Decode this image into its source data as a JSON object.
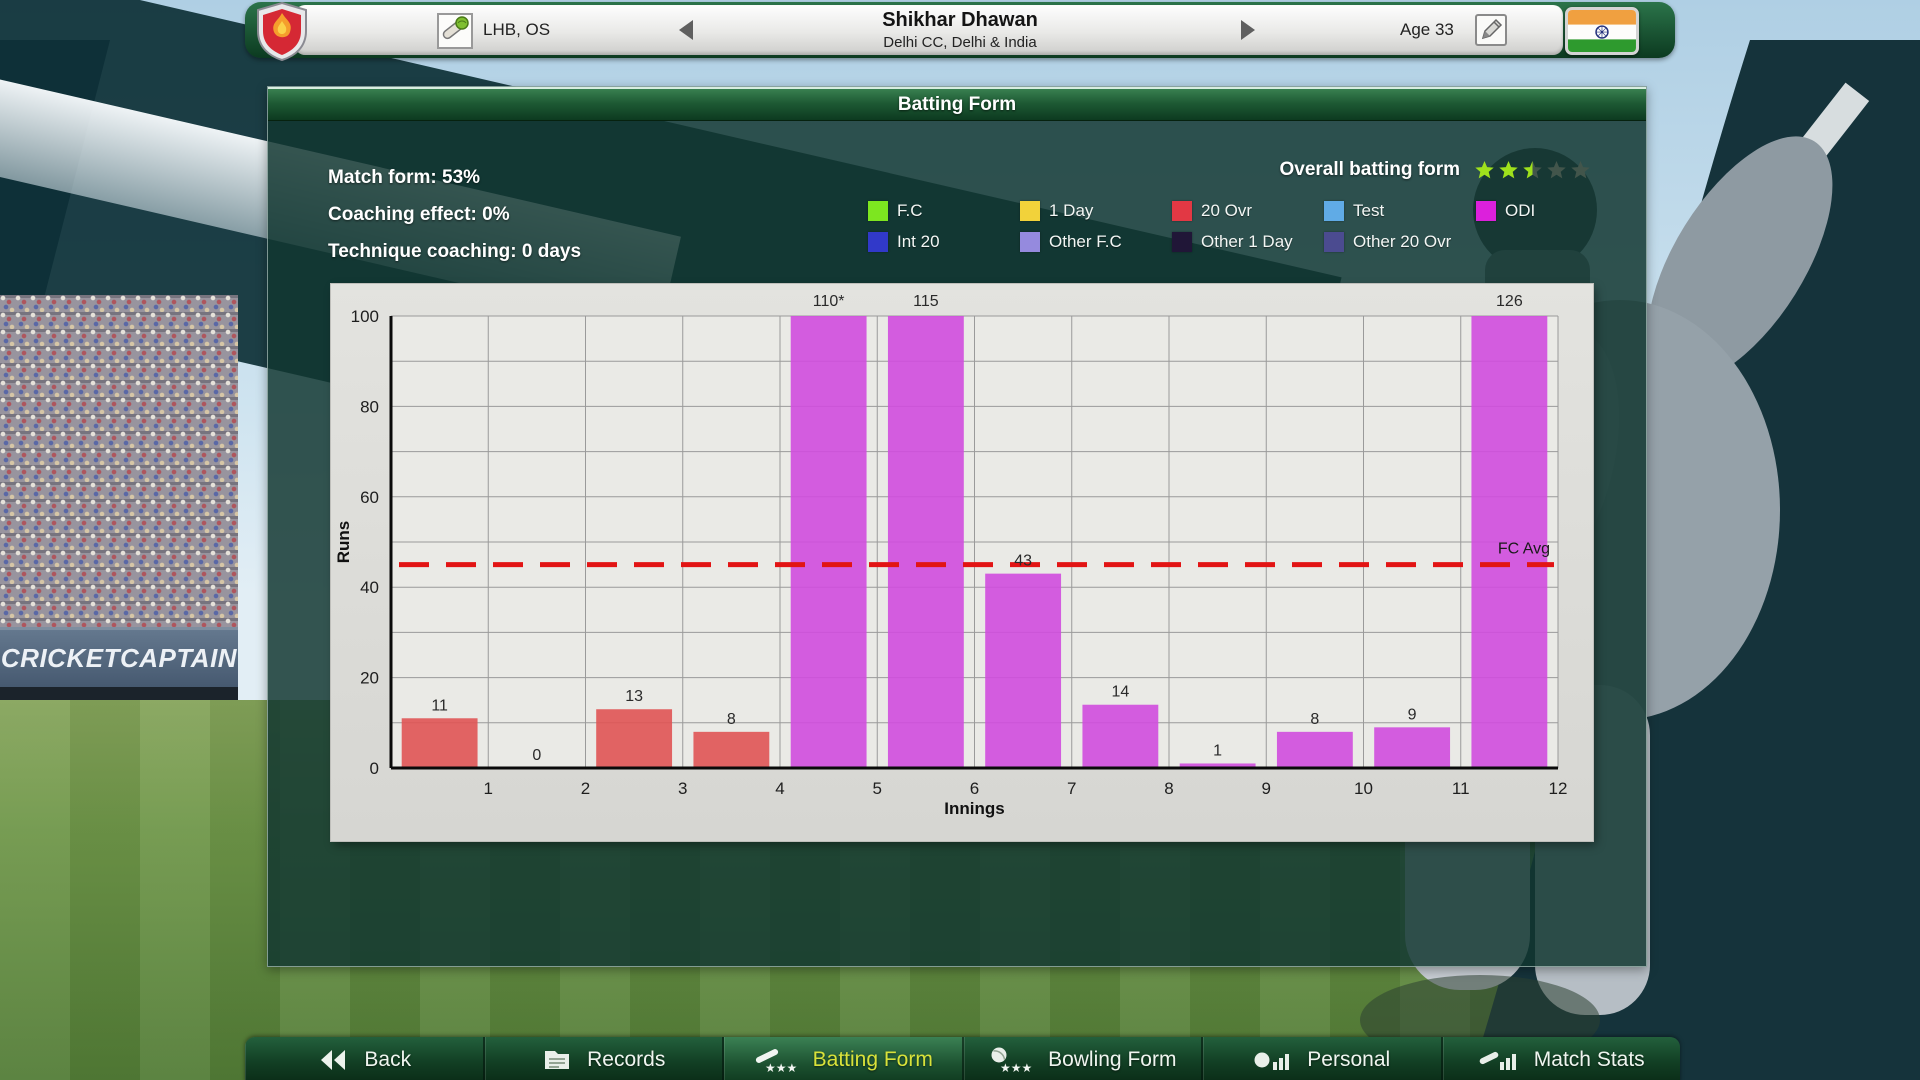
{
  "header": {
    "batting_hand": "LHB, OS",
    "player_name": "Shikhar Dhawan",
    "player_team": "Delhi CC, Delhi & India",
    "age": "Age 33"
  },
  "panel": {
    "title": "Batting Form",
    "match_form": "Match form: 53%",
    "coaching_effect": "Coaching effect: 0%",
    "technique_coaching": "Technique coaching: 0 days",
    "overall_label": "Overall batting form",
    "overall_rating": 2.5,
    "rating_max": 5,
    "star_color": "#9FE11C",
    "star_empty_color": "#42554B",
    "legend": [
      {
        "label": "F.C",
        "color": "#7DE620"
      },
      {
        "label": "1 Day",
        "color": "#F2D23A"
      },
      {
        "label": "20 Ovr",
        "color": "#E23844"
      },
      {
        "label": "Test",
        "color": "#60ABE6"
      },
      {
        "label": "ODI",
        "color": "#DC20DC"
      },
      {
        "label": "Int 20",
        "color": "#3139C9"
      },
      {
        "label": "Other F.C",
        "color": "#958ADE"
      },
      {
        "label": "Other 1 Day",
        "color": "#201637"
      },
      {
        "label": "Other 20 Ovr",
        "color": "#4B4B90"
      }
    ]
  },
  "chart_data": {
    "type": "bar",
    "title": "Batting Form",
    "xlabel": "Innings",
    "ylabel": "Runs",
    "ylim": [
      0,
      100
    ],
    "y_ticks": [
      0,
      20,
      40,
      60,
      80,
      100
    ],
    "grid_step": 10,
    "categories": [
      1,
      2,
      3,
      4,
      5,
      6,
      7,
      8,
      9,
      10,
      11,
      12
    ],
    "values": [
      11,
      0,
      13,
      8,
      110,
      115,
      43,
      14,
      1,
      8,
      9,
      126
    ],
    "labels": [
      "11",
      "0",
      "13",
      "8",
      "110*",
      "115",
      "43",
      "14",
      "1",
      "8",
      "9",
      "126"
    ],
    "types": [
      "20 Ovr",
      "20 Ovr",
      "20 Ovr",
      "20 Ovr",
      "ODI",
      "ODI",
      "ODI",
      "ODI",
      "ODI",
      "ODI",
      "ODI",
      "ODI"
    ],
    "type_colors": {
      "20 Ovr": "#E05454",
      "ODI": "#D04CDE"
    },
    "avg_line": {
      "value": 45,
      "label": "FC Avg",
      "color": "#E21414"
    },
    "grid": true,
    "legend_position": "top-right"
  },
  "background": {
    "banner_text": "CRICKETCAPTAIN"
  },
  "nav": {
    "active_text_color": "#D8E23A",
    "items": [
      {
        "label": "Back",
        "active": false
      },
      {
        "label": "Records",
        "active": false
      },
      {
        "label": "Batting Form",
        "active": true
      },
      {
        "label": "Bowling Form",
        "active": false
      },
      {
        "label": "Personal",
        "active": false
      },
      {
        "label": "Match Stats",
        "active": false
      }
    ]
  }
}
